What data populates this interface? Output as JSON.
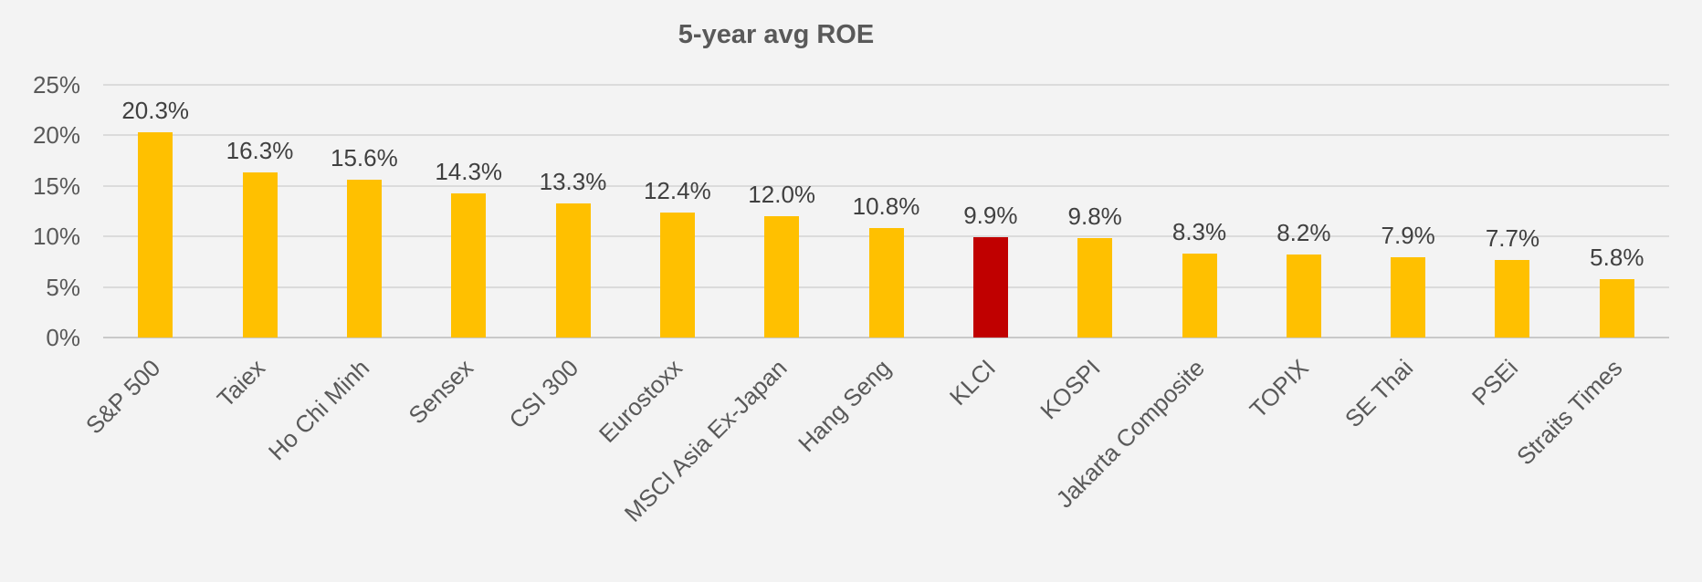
{
  "chart_data": {
    "type": "bar",
    "title": "5-year avg ROE",
    "categories": [
      "S&P 500",
      "Taiex",
      "Ho Chi Minh",
      "Sensex",
      "CSI 300",
      "Eurostoxx",
      "MSCI Asia Ex-Japan",
      "Hang Seng",
      "KLCI",
      "KOSPI",
      "Jakarta Composite",
      "TOPIX",
      "SE Thai",
      "PSEi",
      "Straits Times"
    ],
    "values": [
      20.3,
      16.3,
      15.6,
      14.3,
      13.3,
      12.4,
      12.0,
      10.8,
      9.9,
      9.8,
      8.3,
      8.2,
      7.9,
      7.7,
      5.8
    ],
    "data_labels": [
      "20.3%",
      "16.3%",
      "15.6%",
      "14.3%",
      "13.3%",
      "12.4%",
      "12.0%",
      "10.8%",
      "9.9%",
      "9.8%",
      "8.3%",
      "8.2%",
      "7.9%",
      "7.7%",
      "5.8%"
    ],
    "highlight_category": "KLCI",
    "highlight_index": 8,
    "bar_color": "#FFC000",
    "highlight_color": "#C00000",
    "background_color": "#F3F3F3",
    "gridline_color": "#DBDBDB",
    "title_color": "#595959",
    "axis_label_color": "#595959",
    "data_label_color": "#404040",
    "xlabel": "",
    "ylabel": "",
    "y_axis": {
      "ticks": [
        "25%",
        "20%",
        "15%",
        "10%",
        "5%",
        "0%"
      ],
      "tick_values": [
        25,
        20,
        15,
        10,
        5,
        0
      ],
      "min": 0,
      "max": 25
    },
    "grid": true,
    "legend_position": "none",
    "x_label_rotation_deg": -45
  }
}
